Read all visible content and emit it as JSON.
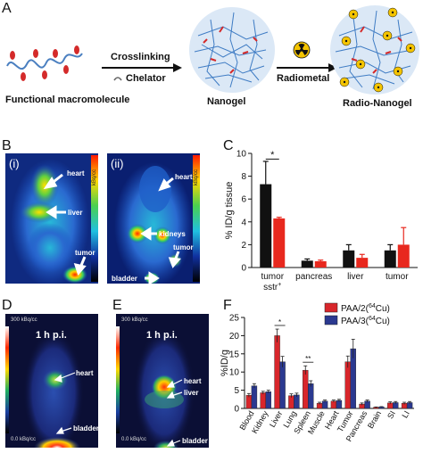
{
  "panel_a": {
    "label": "A",
    "functional_macromolecule": "Functional macromolecule",
    "crosslinking": "Crosslinking",
    "chelator": "Chelator",
    "nanogel": "Nanogel",
    "radiometal": "Radiometal",
    "radio_nanogel": "Radio-Nanogel"
  },
  "panel_b": {
    "label": "B",
    "sub_i": "(i)",
    "sub_ii": "(ii)",
    "heart": "heart",
    "liver": "liver",
    "kidneys": "kidneys",
    "tumor": "tumor",
    "bladder": "bladder",
    "colorbar_unit": "kBq/cc"
  },
  "panel_d": {
    "label": "D",
    "time": "1 h p.i.",
    "scale_top": "300 kBq/cc",
    "scale_bottom": "0.0 kBq/cc",
    "heart": "heart",
    "bladder": "bladder"
  },
  "panel_e": {
    "label": "E",
    "time": "1 h p.i.",
    "scale_top": "300 kBq/cc",
    "scale_bottom": "0.0 kBq/cc",
    "heart": "heart",
    "liver": "liver",
    "bladder": "bladder"
  },
  "chart_data": [
    {
      "panel": "C",
      "type": "bar",
      "ylabel": "% ID/g tissue",
      "ylim": [
        0,
        10
      ],
      "yticks": [
        "0",
        "2",
        "4",
        "6",
        "8",
        "10"
      ],
      "categories": [
        "tumor sstr+",
        "pancreas",
        "liver",
        "tumor"
      ],
      "series": [
        {
          "color": "#111111",
          "values": [
            7.3,
            0.6,
            1.5,
            1.5
          ],
          "errors": [
            2.0,
            0.15,
            0.5,
            0.5
          ]
        },
        {
          "color": "#e8281e",
          "values": [
            4.3,
            0.55,
            0.85,
            2.0
          ],
          "errors": [
            0.1,
            0.1,
            0.3,
            1.5
          ]
        }
      ],
      "significance": "*"
    },
    {
      "panel": "F",
      "type": "bar",
      "ylabel": "%ID/g",
      "ylim": [
        0,
        25
      ],
      "yticks": [
        "0",
        "5",
        "10",
        "15",
        "20",
        "25"
      ],
      "categories": [
        "Blood",
        "Kidney",
        "Liver",
        "Lung",
        "Spleen",
        "Muscle",
        "Heart",
        "Tumor",
        "Pancreas",
        "Brain",
        "SI",
        "LI"
      ],
      "legend": [
        "PAA/2(64Cu)",
        "PAA/3(64Cu)"
      ],
      "series": [
        {
          "name": "PAA/2(64Cu)",
          "color": "#d8262b",
          "values": [
            3.6,
            4.3,
            20.0,
            3.5,
            10.5,
            1.4,
            2.0,
            12.8,
            1.2,
            0.3,
            1.5,
            1.4
          ],
          "errors": [
            0.5,
            0.4,
            1.8,
            0.5,
            1.2,
            0.3,
            0.3,
            1.6,
            0.3,
            0.1,
            0.3,
            0.3
          ]
        },
        {
          "name": "PAA/3(64Cu)",
          "color": "#2b3990",
          "values": [
            6.2,
            4.6,
            12.8,
            3.7,
            6.8,
            2.0,
            2.2,
            16.4,
            2.0,
            0.4,
            1.6,
            1.6
          ],
          "errors": [
            0.6,
            0.4,
            1.5,
            0.5,
            0.8,
            0.3,
            0.3,
            2.6,
            0.3,
            0.1,
            0.3,
            0.3
          ]
        }
      ],
      "significance": [
        {
          "after": "Liver",
          "mark": "*"
        },
        {
          "after": "Spleen",
          "mark": "**"
        }
      ]
    }
  ]
}
